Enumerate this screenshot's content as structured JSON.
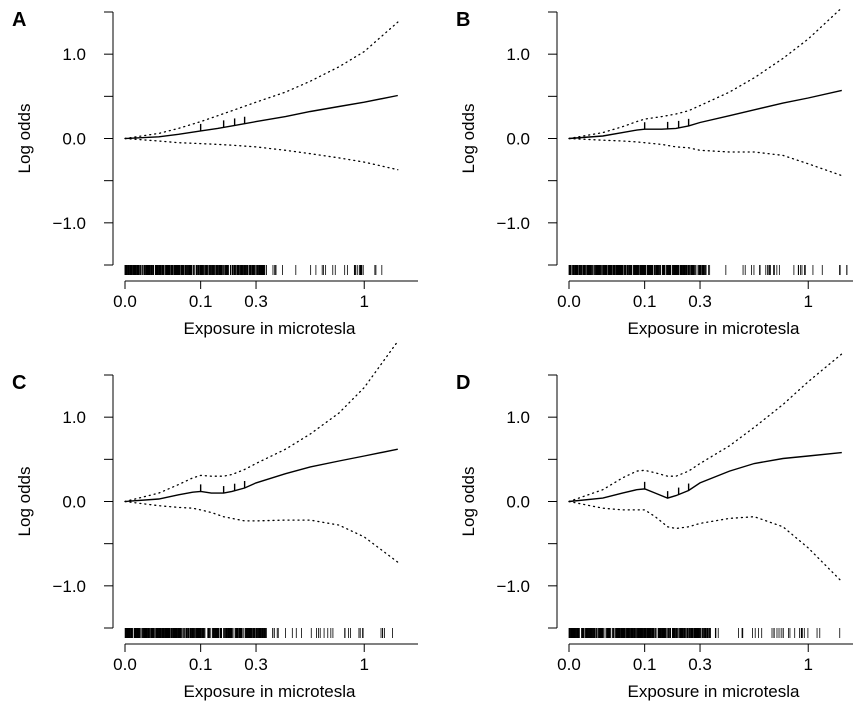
{
  "chart_data": [
    {
      "type": "line",
      "panel": "A",
      "xlabel": "Exposure in microtesla",
      "ylabel": "Log odds",
      "x_ticks": [
        {
          "value": 0.0,
          "label": "0.0"
        },
        {
          "value": 0.1,
          "label": "0.1"
        },
        {
          "value": 0.3,
          "label": "0.3"
        },
        {
          "value": 1.0,
          "label": "1"
        }
      ],
      "y_ticks": [
        {
          "value": 1.0,
          "label": "1.0"
        },
        {
          "value": 0.0,
          "label": "0.0"
        },
        {
          "value": -1.0,
          "label": "−1.0"
        }
      ],
      "ylim": [
        -1.5,
        1.5
      ],
      "xlim": [
        0.0,
        1.5
      ],
      "x_scale": "sqrt",
      "series": [
        {
          "role": "fit",
          "style": "solid",
          "x": [
            0,
            0.02,
            0.05,
            0.1,
            0.15,
            0.2,
            0.3,
            0.45,
            0.6,
            0.8,
            1.0,
            1.3
          ],
          "y": [
            0,
            0.02,
            0.05,
            0.09,
            0.12,
            0.15,
            0.2,
            0.26,
            0.32,
            0.38,
            0.43,
            0.51
          ]
        },
        {
          "role": "upper-ci",
          "style": "dotted",
          "x": [
            0,
            0.02,
            0.05,
            0.1,
            0.15,
            0.2,
            0.3,
            0.45,
            0.6,
            0.8,
            1.0,
            1.3
          ],
          "y": [
            0,
            0.06,
            0.12,
            0.2,
            0.27,
            0.33,
            0.43,
            0.55,
            0.68,
            0.85,
            1.03,
            1.38
          ]
        },
        {
          "role": "lower-ci",
          "style": "dotted",
          "x": [
            0,
            0.02,
            0.05,
            0.1,
            0.15,
            0.2,
            0.3,
            0.45,
            0.6,
            0.8,
            1.0,
            1.3
          ],
          "y": [
            0,
            -0.03,
            -0.05,
            -0.06,
            -0.07,
            -0.08,
            -0.1,
            -0.14,
            -0.18,
            -0.23,
            -0.28,
            -0.37
          ]
        }
      ],
      "rug": "dense at low exposure, sparse above 0.3"
    },
    {
      "type": "line",
      "panel": "B",
      "xlabel": "Exposure in microtesla",
      "ylabel": "Log odds",
      "x_ticks": [
        {
          "value": 0.0,
          "label": "0.0"
        },
        {
          "value": 0.1,
          "label": "0.1"
        },
        {
          "value": 0.3,
          "label": "0.3"
        },
        {
          "value": 1.0,
          "label": "1"
        }
      ],
      "y_ticks": [
        {
          "value": 1.0,
          "label": "1.0"
        },
        {
          "value": 0.0,
          "label": "0.0"
        },
        {
          "value": -1.0,
          "label": "−1.0"
        }
      ],
      "ylim": [
        -1.5,
        1.5
      ],
      "xlim": [
        0.0,
        1.5
      ],
      "x_scale": "sqrt",
      "series": [
        {
          "role": "fit",
          "style": "solid",
          "x": [
            0,
            0.02,
            0.05,
            0.08,
            0.1,
            0.15,
            0.2,
            0.25,
            0.3,
            0.45,
            0.6,
            0.8,
            1.0,
            1.3
          ],
          "y": [
            0,
            0.03,
            0.07,
            0.1,
            0.11,
            0.11,
            0.12,
            0.15,
            0.19,
            0.27,
            0.34,
            0.42,
            0.48,
            0.57
          ]
        },
        {
          "role": "upper-ci",
          "style": "dotted",
          "x": [
            0,
            0.02,
            0.05,
            0.08,
            0.1,
            0.15,
            0.2,
            0.25,
            0.3,
            0.45,
            0.6,
            0.8,
            1.0,
            1.3
          ],
          "y": [
            0,
            0.07,
            0.14,
            0.2,
            0.23,
            0.26,
            0.29,
            0.33,
            0.39,
            0.55,
            0.72,
            0.95,
            1.18,
            1.55
          ]
        },
        {
          "role": "lower-ci",
          "style": "dotted",
          "x": [
            0,
            0.02,
            0.05,
            0.08,
            0.1,
            0.15,
            0.2,
            0.25,
            0.3,
            0.45,
            0.6,
            0.8,
            1.0,
            1.3
          ],
          "y": [
            0,
            -0.02,
            -0.03,
            -0.04,
            -0.05,
            -0.07,
            -0.1,
            -0.11,
            -0.14,
            -0.16,
            -0.16,
            -0.2,
            -0.3,
            -0.44
          ]
        }
      ],
      "rug": "dense at low exposure, sparse above 0.3"
    },
    {
      "type": "line",
      "panel": "C",
      "xlabel": "Exposure in microtesla",
      "ylabel": "Log odds",
      "x_ticks": [
        {
          "value": 0.0,
          "label": "0.0"
        },
        {
          "value": 0.1,
          "label": "0.1"
        },
        {
          "value": 0.3,
          "label": "0.3"
        },
        {
          "value": 1.0,
          "label": "1"
        }
      ],
      "y_ticks": [
        {
          "value": 1.0,
          "label": "1.0"
        },
        {
          "value": 0.0,
          "label": "0.0"
        },
        {
          "value": -1.0,
          "label": "−1.0"
        }
      ],
      "ylim": [
        -1.5,
        1.5
      ],
      "xlim": [
        0.0,
        1.5
      ],
      "x_scale": "sqrt",
      "series": [
        {
          "role": "fit",
          "style": "solid",
          "x": [
            0,
            0.02,
            0.05,
            0.08,
            0.1,
            0.13,
            0.17,
            0.2,
            0.25,
            0.3,
            0.45,
            0.6,
            0.8,
            1.0,
            1.3
          ],
          "y": [
            0,
            0.03,
            0.08,
            0.11,
            0.12,
            0.1,
            0.1,
            0.12,
            0.16,
            0.22,
            0.33,
            0.41,
            0.48,
            0.54,
            0.62
          ]
        },
        {
          "role": "upper-ci",
          "style": "dotted",
          "x": [
            0,
            0.02,
            0.05,
            0.08,
            0.1,
            0.13,
            0.17,
            0.2,
            0.25,
            0.3,
            0.45,
            0.6,
            0.8,
            1.0,
            1.3
          ],
          "y": [
            0,
            0.1,
            0.2,
            0.28,
            0.31,
            0.3,
            0.3,
            0.32,
            0.38,
            0.45,
            0.62,
            0.8,
            1.05,
            1.35,
            1.9
          ]
        },
        {
          "role": "lower-ci",
          "style": "dotted",
          "x": [
            0,
            0.02,
            0.05,
            0.08,
            0.1,
            0.13,
            0.17,
            0.2,
            0.25,
            0.3,
            0.45,
            0.6,
            0.8,
            1.0,
            1.3
          ],
          "y": [
            0,
            -0.05,
            -0.07,
            -0.08,
            -0.1,
            -0.13,
            -0.18,
            -0.2,
            -0.23,
            -0.23,
            -0.22,
            -0.22,
            -0.28,
            -0.42,
            -0.72
          ]
        }
      ],
      "rug": "dense at low exposure, sparse above 0.3"
    },
    {
      "type": "line",
      "panel": "D",
      "xlabel": "Exposure in microtesla",
      "ylabel": "Log odds",
      "x_ticks": [
        {
          "value": 0.0,
          "label": "0.0"
        },
        {
          "value": 0.1,
          "label": "0.1"
        },
        {
          "value": 0.3,
          "label": "0.3"
        },
        {
          "value": 1.0,
          "label": "1"
        }
      ],
      "y_ticks": [
        {
          "value": 1.0,
          "label": "1.0"
        },
        {
          "value": 0.0,
          "label": "0.0"
        },
        {
          "value": -1.0,
          "label": "−1.0"
        }
      ],
      "ylim": [
        -1.5,
        1.5
      ],
      "xlim": [
        0.0,
        1.5
      ],
      "x_scale": "sqrt",
      "series": [
        {
          "role": "fit",
          "style": "solid",
          "x": [
            0,
            0.02,
            0.05,
            0.08,
            0.1,
            0.13,
            0.17,
            0.2,
            0.25,
            0.3,
            0.45,
            0.6,
            0.8,
            1.0,
            1.3
          ],
          "y": [
            0,
            0.04,
            0.1,
            0.14,
            0.15,
            0.1,
            0.04,
            0.07,
            0.13,
            0.22,
            0.36,
            0.45,
            0.51,
            0.54,
            0.58
          ]
        },
        {
          "role": "upper-ci",
          "style": "dotted",
          "x": [
            0,
            0.02,
            0.05,
            0.08,
            0.1,
            0.13,
            0.17,
            0.2,
            0.25,
            0.3,
            0.45,
            0.6,
            0.8,
            1.0,
            1.3
          ],
          "y": [
            0,
            0.14,
            0.28,
            0.36,
            0.37,
            0.34,
            0.3,
            0.3,
            0.36,
            0.45,
            0.66,
            0.88,
            1.15,
            1.42,
            1.75
          ]
        },
        {
          "role": "lower-ci",
          "style": "dotted",
          "x": [
            0,
            0.02,
            0.05,
            0.08,
            0.1,
            0.13,
            0.17,
            0.2,
            0.25,
            0.3,
            0.45,
            0.6,
            0.8,
            1.0,
            1.3
          ],
          "y": [
            0,
            -0.08,
            -0.1,
            -0.1,
            -0.1,
            -0.18,
            -0.3,
            -0.32,
            -0.3,
            -0.26,
            -0.2,
            -0.18,
            -0.3,
            -0.55,
            -0.95
          ]
        }
      ],
      "rug": "dense at low exposure, sparse above 0.3"
    }
  ]
}
